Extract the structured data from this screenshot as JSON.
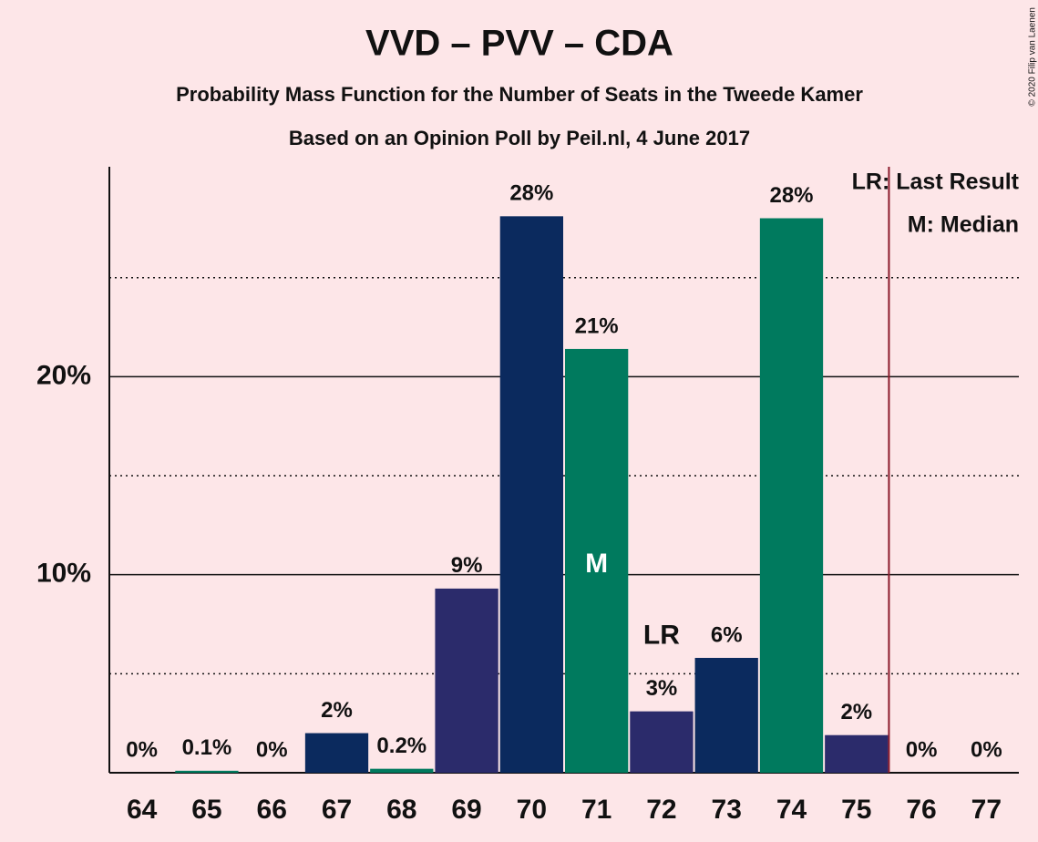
{
  "chart_data": {
    "type": "bar",
    "title": "VVD – PVV – CDA",
    "subtitle": "Probability Mass Function for the Number of Seats in the Tweede Kamer",
    "subtitle2": "Based on an Opinion Poll by Peil.nl, 4 June 2017",
    "copyright": "© 2020 Filip van Laenen",
    "categories": [
      "64",
      "65",
      "66",
      "67",
      "68",
      "69",
      "70",
      "71",
      "72",
      "73",
      "74",
      "75",
      "76",
      "77"
    ],
    "values": [
      0,
      0.1,
      0,
      2,
      0.2,
      9.3,
      28.1,
      21.4,
      3.1,
      5.8,
      28.0,
      1.9,
      0,
      0
    ],
    "value_labels": [
      "0%",
      "0.1%",
      "0%",
      "2%",
      "0.2%",
      "9%",
      "28%",
      "21%",
      "3%",
      "6%",
      "28%",
      "2%",
      "0%",
      "0%"
    ],
    "colors": [
      "#0b2a5e",
      "#007a5e",
      "#2b2b6b",
      "#0b2a5e",
      "#007a5e",
      "#2b2b6b",
      "#0b2a5e",
      "#007a5e",
      "#2b2b6b",
      "#0b2a5e",
      "#007a5e",
      "#2b2b6b",
      "#0b2a5e",
      "#007a5e"
    ],
    "ylim": [
      0,
      30.6
    ],
    "yticks": [
      {
        "value": 10,
        "label": "10%"
      },
      {
        "value": 20,
        "label": "20%"
      }
    ],
    "minor_yticks": [
      5,
      15,
      25
    ],
    "grid": true,
    "median": {
      "label": "M",
      "category": "71"
    },
    "last_result": {
      "label": "LR",
      "category": "72"
    },
    "majority_line": {
      "category": "76",
      "color": "#8b1a2b"
    },
    "legend": [
      "LR: Last Result",
      "M: Median"
    ]
  }
}
